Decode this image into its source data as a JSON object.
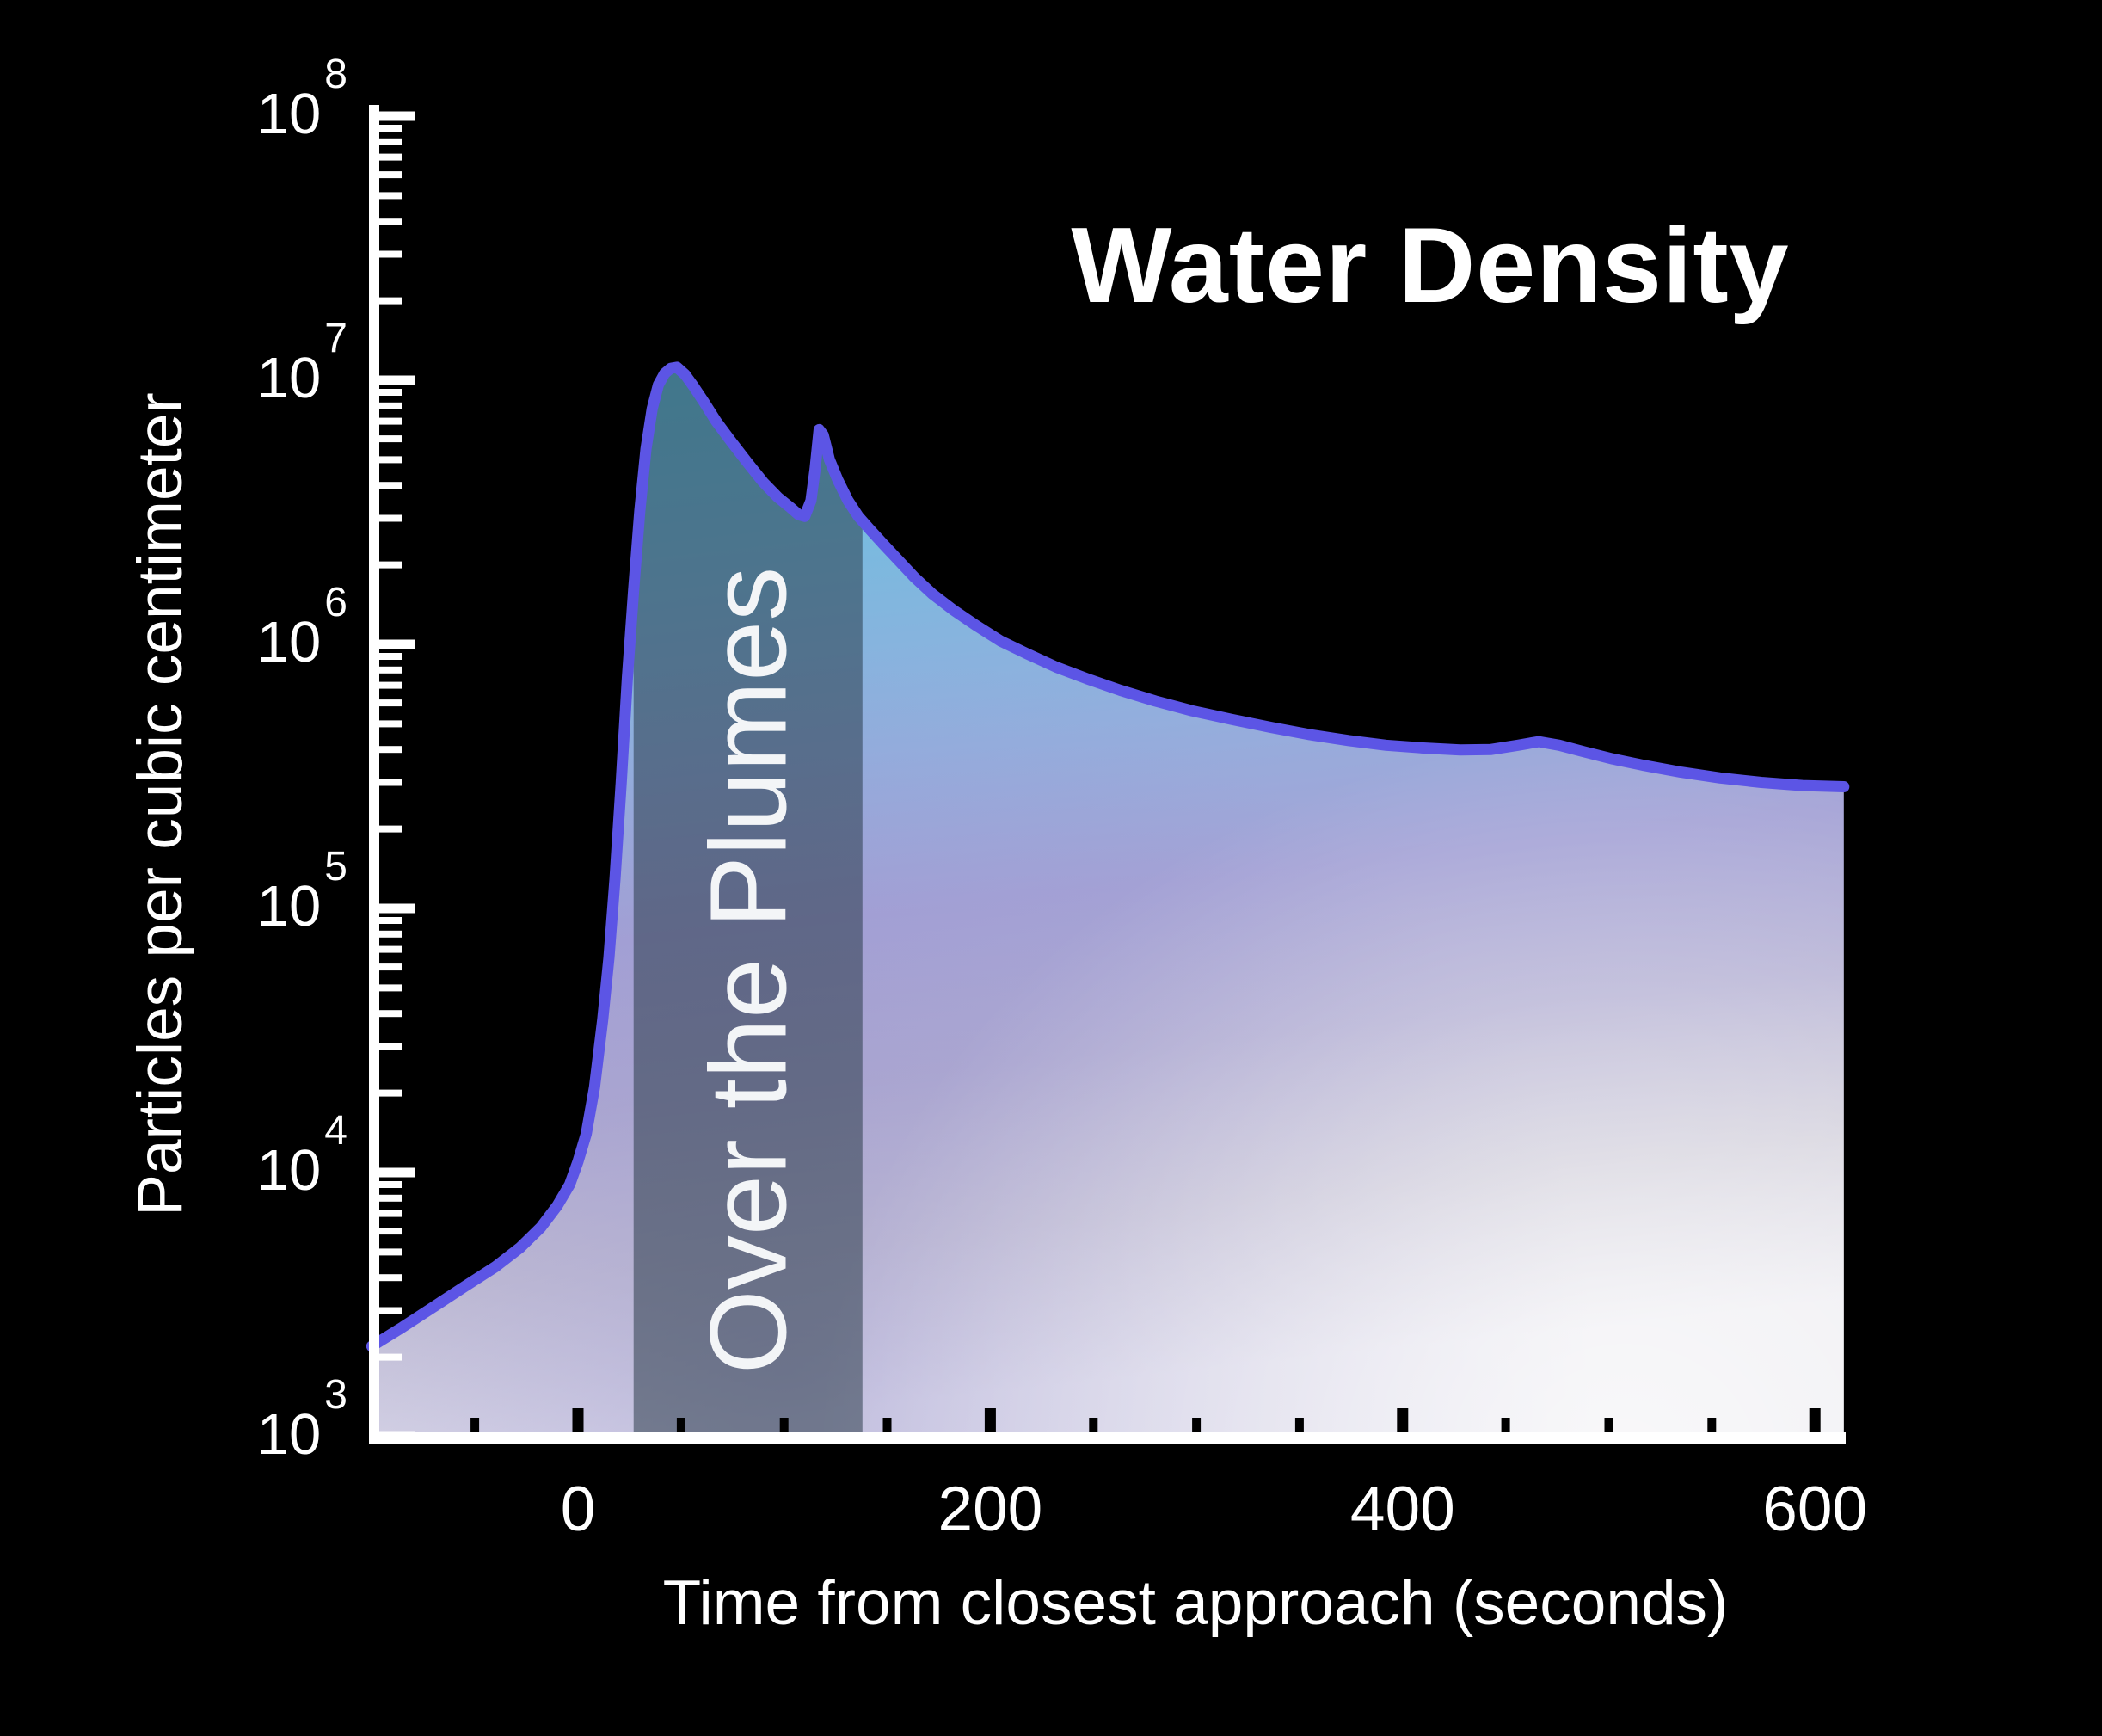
{
  "page": {
    "background": "#000000"
  },
  "chart_data": {
    "type": "area",
    "title": "Water Density",
    "xlabel": "Time from closest approach (seconds)",
    "ylabel": "Particles per cubic centimeter",
    "grid": false,
    "legend": null,
    "x_axis": {
      "unit": "seconds",
      "range": [
        -100,
        615
      ],
      "tick_values": [
        0,
        200,
        400,
        600
      ],
      "tick_labels": [
        "0",
        "200",
        "400",
        "600"
      ],
      "minor_step": 50
    },
    "y_axis": {
      "scale": "log",
      "tick_base": "10",
      "tick_exponents": [
        8,
        7,
        6,
        5,
        4,
        3
      ],
      "range_exp": [
        3,
        8
      ],
      "minor_multiples": [
        2,
        3,
        4,
        5,
        6,
        7,
        8,
        9
      ]
    },
    "band": {
      "label": "Over the Plumes",
      "x_start": 27,
      "x_end": 138
    },
    "series": [
      {
        "name": "Water density",
        "points": [
          [
            -100,
            2200
          ],
          [
            -85,
            2600
          ],
          [
            -70,
            3100
          ],
          [
            -55,
            3700
          ],
          [
            -40,
            4400
          ],
          [
            -28,
            5200
          ],
          [
            -18,
            6200
          ],
          [
            -10,
            7500
          ],
          [
            -4,
            9000
          ],
          [
            0,
            11000
          ],
          [
            4,
            14000
          ],
          [
            8,
            21000
          ],
          [
            12,
            38000
          ],
          [
            15,
            65000
          ],
          [
            18,
            130000
          ],
          [
            21,
            300000
          ],
          [
            24,
            750000
          ],
          [
            27,
            1600000
          ],
          [
            30,
            3200000
          ],
          [
            33,
            5500000
          ],
          [
            36,
            7800000
          ],
          [
            39,
            9600000
          ],
          [
            42,
            10600000
          ],
          [
            45,
            11100000
          ],
          [
            48,
            11200000
          ],
          [
            52,
            10500000
          ],
          [
            56,
            9500000
          ],
          [
            61,
            8300000
          ],
          [
            67,
            7000000
          ],
          [
            74,
            5900000
          ],
          [
            82,
            4900000
          ],
          [
            90,
            4100000
          ],
          [
            97,
            3600000
          ],
          [
            103,
            3300000
          ],
          [
            107,
            3100000
          ],
          [
            110,
            3050000
          ],
          [
            113,
            3500000
          ],
          [
            115,
            4600000
          ],
          [
            117,
            6500000
          ],
          [
            119,
            6200000
          ],
          [
            122,
            5000000
          ],
          [
            126,
            4200000
          ],
          [
            131,
            3500000
          ],
          [
            136,
            3050000
          ],
          [
            142,
            2700000
          ],
          [
            148,
            2400000
          ],
          [
            155,
            2100000
          ],
          [
            163,
            1800000
          ],
          [
            172,
            1550000
          ],
          [
            182,
            1350000
          ],
          [
            193,
            1180000
          ],
          [
            205,
            1030000
          ],
          [
            218,
            920000
          ],
          [
            232,
            820000
          ],
          [
            247,
            740000
          ],
          [
            263,
            670000
          ],
          [
            280,
            610000
          ],
          [
            298,
            560000
          ],
          [
            317,
            520000
          ],
          [
            336,
            485000
          ],
          [
            355,
            455000
          ],
          [
            374,
            432000
          ],
          [
            392,
            415000
          ],
          [
            410,
            405000
          ],
          [
            428,
            398000
          ],
          [
            443,
            400000
          ],
          [
            456,
            415000
          ],
          [
            466,
            428000
          ],
          [
            476,
            415000
          ],
          [
            488,
            392000
          ],
          [
            502,
            368000
          ],
          [
            517,
            348000
          ],
          [
            535,
            328000
          ],
          [
            554,
            312000
          ],
          [
            574,
            300000
          ],
          [
            594,
            292000
          ],
          [
            614,
            289000
          ]
        ]
      }
    ],
    "colors": {
      "background": "#000000",
      "axis": "#ffffff",
      "y_tick": "#ffffff",
      "x_tick": "#000000",
      "curve": "#5c55e5",
      "band_overlay": "rgba(30,48,60,0.5)",
      "band_label": "#f3f5f7",
      "fill_stops": [
        "#5fc0dc",
        "#79badf",
        "#93aedd",
        "#a5a3d6",
        "#b2aed2",
        "#ccc9d6",
        "#e9e8ee"
      ]
    }
  }
}
